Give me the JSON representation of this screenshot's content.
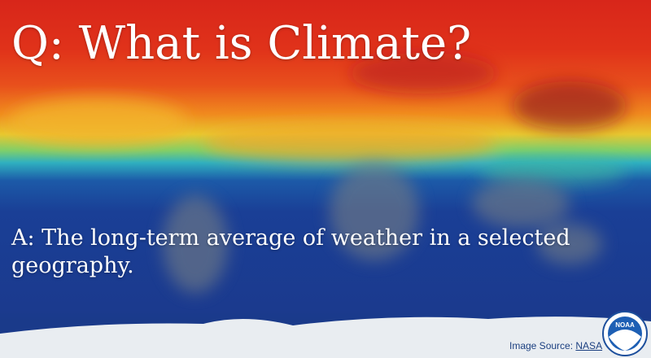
{
  "title": "Q: What is Climate?",
  "answer": "A: The long-term average of weather in a selected geography.",
  "source": {
    "label": "Image Source:",
    "link": "NASA"
  },
  "logo": "NOAA"
}
